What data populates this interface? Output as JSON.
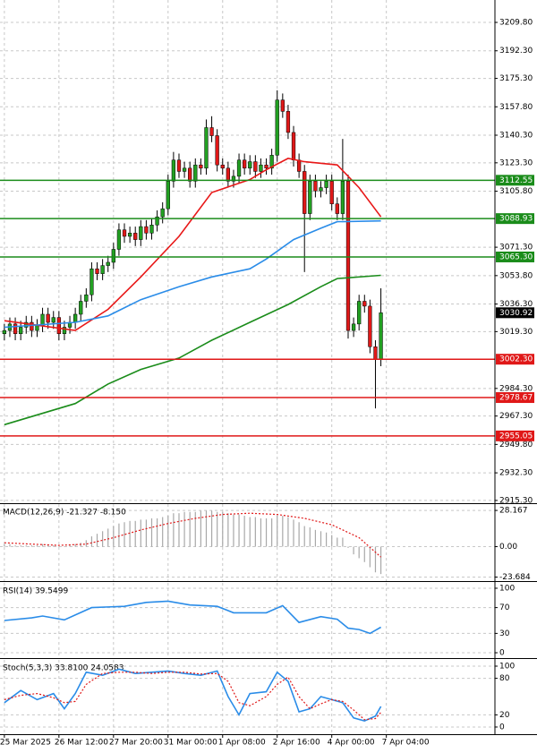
{
  "chart_data": [
    {
      "type": "candlestick",
      "xlim": [
        -0.8,
        89.9
      ],
      "xticks": [
        {
          "value": 0,
          "label": "25 Mar 2025"
        },
        {
          "value": 10,
          "label": "26 Mar 12:00"
        },
        {
          "value": 20,
          "label": "27 Mar 20:00"
        },
        {
          "value": 30,
          "label": "31 Mar 00:00"
        },
        {
          "value": 40,
          "label": "1 Apr 08:00"
        },
        {
          "value": 50,
          "label": "2 Apr 16:00"
        },
        {
          "value": 60,
          "label": "4 Apr 00:00"
        },
        {
          "value": 70,
          "label": "7 Apr 04:00"
        }
      ],
      "ylim": [
        2913.6,
        3223.6
      ],
      "yticks": [
        {
          "value": 3209.8,
          "label": "3209.80"
        },
        {
          "value": 3192.3,
          "label": "3192.30"
        },
        {
          "value": 3175.3,
          "label": "3175.30"
        },
        {
          "value": 3157.8,
          "label": "3157.80"
        },
        {
          "value": 3140.3,
          "label": "3140.30"
        },
        {
          "value": 3123.3,
          "label": "3123.30"
        },
        {
          "value": 3105.8,
          "label": "3105.80"
        },
        {
          "value": 3071.3,
          "label": "3071.30"
        },
        {
          "value": 3053.8,
          "label": "3053.80"
        },
        {
          "value": 3036.3,
          "label": "3036.30"
        },
        {
          "value": 3019.3,
          "label": "3019.30"
        },
        {
          "value": 2984.3,
          "label": "2984.30"
        },
        {
          "value": 2967.3,
          "label": "2967.30"
        },
        {
          "value": 2949.8,
          "label": "2949.80"
        },
        {
          "value": 2932.3,
          "label": "2932.30"
        },
        {
          "value": 2915.3,
          "label": "2915.30"
        }
      ],
      "grid": true,
      "up_color": "#22a022",
      "down_color": "#e01818",
      "open": [
        3018,
        3020,
        3024,
        3018,
        3022,
        3025,
        3020,
        3023,
        3030,
        3025,
        3028,
        3018,
        3022,
        3025,
        3030,
        3038,
        3042,
        3058,
        3055,
        3060,
        3062,
        3070,
        3082,
        3078,
        3080,
        3076,
        3084,
        3080,
        3085,
        3090,
        3095,
        3112,
        3125,
        3118,
        3120,
        3112,
        3122,
        3120,
        3145,
        3140,
        3122,
        3120,
        3112,
        3115,
        3125,
        3120,
        3124,
        3118,
        3122,
        3120,
        3128,
        3162,
        3155,
        3142,
        3125,
        3118,
        3092,
        3112,
        3106,
        3108,
        3112,
        3098,
        3092,
        3112,
        3020,
        3024,
        3038,
        3035,
        3010,
        3002
      ],
      "high": [
        3024,
        3028,
        3028,
        3026,
        3029,
        3029,
        3027,
        3034,
        3034,
        3032,
        3032,
        3026,
        3029,
        3034,
        3042,
        3046,
        3062,
        3062,
        3064,
        3066,
        3074,
        3086,
        3086,
        3084,
        3084,
        3088,
        3088,
        3089,
        3094,
        3099,
        3116,
        3130,
        3129,
        3124,
        3124,
        3126,
        3126,
        3150,
        3152,
        3144,
        3126,
        3124,
        3119,
        3129,
        3129,
        3128,
        3128,
        3126,
        3126,
        3132,
        3168,
        3166,
        3159,
        3146,
        3129,
        3122,
        3116,
        3116,
        3112,
        3116,
        3116,
        3102,
        3138,
        3116,
        3028,
        3042,
        3042,
        3039,
        3014,
        3046
      ],
      "low": [
        3014,
        3016,
        3014,
        3014,
        3018,
        3016,
        3016,
        3019,
        3021,
        3021,
        3014,
        3014,
        3018,
        3021,
        3026,
        3034,
        3038,
        3051,
        3051,
        3056,
        3058,
        3066,
        3074,
        3074,
        3072,
        3072,
        3076,
        3076,
        3081,
        3086,
        3091,
        3108,
        3114,
        3114,
        3108,
        3108,
        3116,
        3116,
        3136,
        3118,
        3116,
        3108,
        3108,
        3111,
        3116,
        3116,
        3114,
        3114,
        3116,
        3116,
        3124,
        3151,
        3138,
        3121,
        3114,
        3056,
        3088,
        3102,
        3102,
        3104,
        3094,
        3088,
        3088,
        3015,
        3016,
        3020,
        3031,
        3006,
        2972,
        2998
      ],
      "close": [
        3020,
        3024,
        3018,
        3022,
        3025,
        3020,
        3023,
        3030,
        3025,
        3028,
        3018,
        3022,
        3025,
        3030,
        3038,
        3042,
        3058,
        3055,
        3060,
        3062,
        3070,
        3082,
        3078,
        3080,
        3076,
        3084,
        3080,
        3085,
        3090,
        3095,
        3112,
        3125,
        3118,
        3120,
        3112,
        3122,
        3120,
        3145,
        3140,
        3122,
        3120,
        3112,
        3115,
        3125,
        3120,
        3124,
        3118,
        3122,
        3120,
        3128,
        3162,
        3155,
        3142,
        3125,
        3118,
        3092,
        3112,
        3106,
        3108,
        3112,
        3098,
        3092,
        3112,
        3020,
        3024,
        3038,
        3035,
        3010,
        3002,
        3030.92
      ],
      "series": [
        {
          "color": "#e81818",
          "x": [
            0,
            13,
            19,
            25,
            32,
            38,
            45,
            48,
            52,
            55,
            61,
            65,
            69
          ],
          "values": [
            3026,
            3020,
            3033,
            3053,
            3078,
            3105,
            3113,
            3119,
            3126,
            3124,
            3122,
            3108,
            3090
          ]
        },
        {
          "color": "#2a8ce8",
          "x": [
            0,
            13,
            19,
            25,
            32,
            38,
            45,
            48,
            53,
            58,
            61,
            69
          ],
          "values": [
            3022,
            3025,
            3029,
            3039,
            3047,
            3053,
            3058,
            3064,
            3076,
            3083,
            3087,
            3087.5
          ]
        },
        {
          "color": "#1a8c1a",
          "x": [
            0,
            13,
            19,
            25,
            32,
            38,
            45,
            52,
            58,
            61,
            69
          ],
          "values": [
            2962,
            2975,
            2987,
            2996,
            3003,
            3014,
            3025,
            3036,
            3047,
            3052,
            3054
          ]
        }
      ],
      "levels": [
        {
          "value": 3112.55,
          "label": "3112.55",
          "color": "#1a8c1a"
        },
        {
          "value": 3088.93,
          "label": "3088.93",
          "color": "#1a8c1a"
        },
        {
          "value": 3065.3,
          "label": "3065.30",
          "color": "#1a8c1a"
        },
        {
          "value": 3002.3,
          "label": "3002.30",
          "color": "#e01818"
        },
        {
          "value": 2978.67,
          "label": "2978.67",
          "color": "#e01818"
        },
        {
          "value": 2955.05,
          "label": "2955.05",
          "color": "#e01818"
        }
      ],
      "last_price": {
        "value": 3030.92,
        "label": "3030.92"
      }
    },
    {
      "type": "macd",
      "title": "MACD(12,26,9) -21.327 -8.150",
      "ylim": [
        -26.8,
        33.1
      ],
      "yticks": [
        {
          "value": 28.167,
          "label": "28.167"
        },
        {
          "value": 0,
          "label": "0.00"
        },
        {
          "value": -23.684,
          "label": "-23.684"
        }
      ],
      "histogram_color": "#a8a8a8",
      "histogram": [
        2,
        2,
        1,
        1,
        1,
        1,
        1,
        2,
        1,
        1,
        0,
        0,
        1,
        2,
        3,
        5,
        8,
        10,
        12,
        14,
        16,
        18,
        19,
        20,
        20,
        21,
        21,
        22,
        22,
        23,
        24,
        26,
        26,
        27,
        27,
        27,
        28,
        28,
        28,
        27,
        27,
        26,
        25,
        25,
        24,
        23,
        23,
        22,
        22,
        22,
        24,
        24,
        23,
        21,
        19,
        16,
        15,
        13,
        12,
        11,
        9,
        7,
        7,
        -1,
        -6,
        -9,
        -12,
        -16,
        -20,
        -21.327
      ],
      "series": [
        {
          "color": "#e01818",
          "dash": true,
          "x": [
            0,
            5,
            10,
            15,
            20,
            25,
            30,
            35,
            40,
            45,
            50,
            55,
            60,
            65,
            69
          ],
          "values": [
            3,
            2,
            1,
            2,
            7,
            13,
            18,
            22,
            25,
            26,
            25,
            22,
            17,
            7,
            -8.15
          ]
        }
      ]
    },
    {
      "type": "oscillator",
      "title": "RSI(14) 39.5499",
      "ylim": [
        -8.3,
        108.3
      ],
      "yticks": [
        100,
        70,
        30,
        0
      ],
      "series": [
        {
          "color": "#2a8ce8",
          "x": [
            0,
            5,
            7,
            11,
            16,
            22,
            26,
            30,
            34,
            39,
            42,
            48,
            51,
            54,
            58,
            61,
            63,
            65,
            67,
            69
          ],
          "values": [
            50,
            54,
            57,
            51,
            70,
            72,
            78,
            80,
            74,
            72,
            62,
            62,
            73,
            47,
            56,
            52,
            38,
            36,
            30,
            39.5499
          ]
        }
      ]
    },
    {
      "type": "oscillator",
      "title": "Stoch(5,3,3) 33.8100 24.0583",
      "ylim": [
        -11.8,
        110.3
      ],
      "yticks": [
        100,
        80,
        20,
        0
      ],
      "series": [
        {
          "color": "#2a8ce8",
          "x": [
            0,
            3,
            6,
            9,
            11,
            13,
            15,
            18,
            21,
            24,
            27,
            30,
            33,
            36,
            39,
            41,
            43,
            45,
            48,
            50,
            52,
            54,
            56,
            58,
            60,
            62,
            64,
            66,
            68,
            69
          ],
          "values": [
            40,
            60,
            45,
            55,
            30,
            55,
            90,
            85,
            95,
            88,
            90,
            92,
            88,
            85,
            92,
            50,
            20,
            55,
            58,
            90,
            75,
            25,
            30,
            50,
            45,
            40,
            15,
            10,
            18,
            33.81
          ]
        },
        {
          "color": "#e01818",
          "dash": true,
          "x": [
            0,
            3,
            6,
            9,
            11,
            13,
            15,
            18,
            21,
            24,
            27,
            30,
            33,
            36,
            39,
            41,
            43,
            45,
            48,
            50,
            52,
            54,
            56,
            58,
            60,
            62,
            64,
            66,
            68,
            69
          ],
          "values": [
            45,
            52,
            55,
            48,
            40,
            42,
            70,
            88,
            90,
            90,
            88,
            90,
            90,
            87,
            88,
            75,
            40,
            35,
            50,
            70,
            82,
            50,
            30,
            38,
            45,
            42,
            28,
            12,
            14,
            24.0583
          ]
        }
      ]
    }
  ]
}
